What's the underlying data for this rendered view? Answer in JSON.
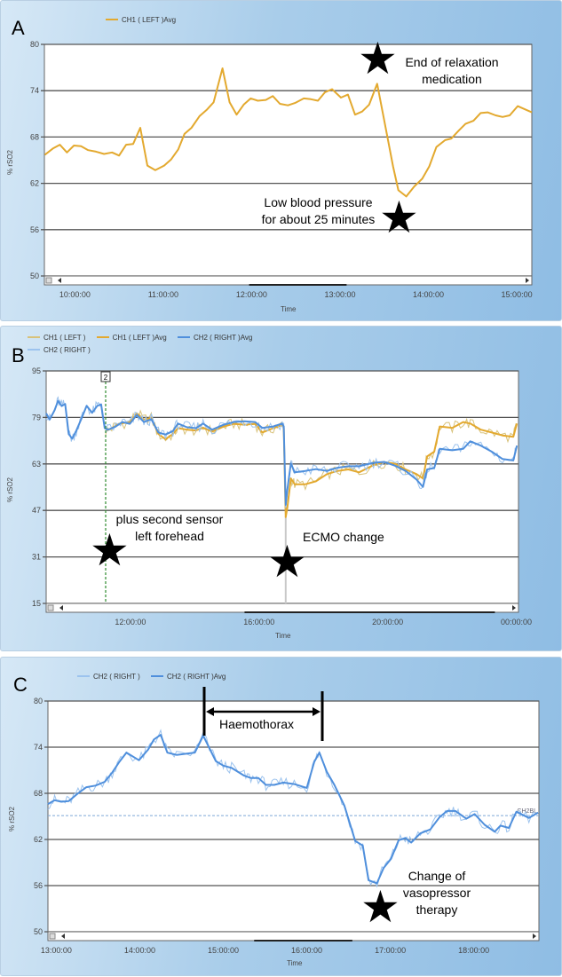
{
  "colors": {
    "ch1": "#e3a92f",
    "ch1_raw": "#d8c27a",
    "ch2": "#4f8fdc",
    "ch2_raw": "#9cc3ee",
    "grid": "#555555",
    "marker": "#2e8b2e"
  },
  "chart_data": [
    {
      "panel": "A",
      "type": "line",
      "xlabel": "Time",
      "ylabel": "% rSO2",
      "xlim": [
        9.655,
        15.17
      ],
      "ylim": [
        50,
        80
      ],
      "yticks": [
        50,
        56,
        62,
        68,
        74,
        80
      ],
      "xticks": [
        {
          "v": 10,
          "label": "10:00:00"
        },
        {
          "v": 11,
          "label": "11:00:00"
        },
        {
          "v": 12,
          "label": "12:00:00"
        },
        {
          "v": 13,
          "label": "13:00:00"
        },
        {
          "v": 14,
          "label": "14:00:00"
        },
        {
          "v": 15,
          "label": "15:00:00"
        }
      ],
      "legend": [
        "CH1 ( LEFT )Avg"
      ],
      "series": [
        {
          "name": "CH1 ( LEFT )Avg",
          "color_key": "ch1",
          "width": 2,
          "x": [
            9.66,
            9.75,
            9.83,
            9.91,
            9.99,
            10.07,
            10.15,
            10.24,
            10.33,
            10.42,
            10.5,
            10.58,
            10.66,
            10.74,
            10.82,
            10.91,
            11.01,
            11.09,
            11.17,
            11.24,
            11.32,
            11.41,
            11.49,
            11.57,
            11.67,
            11.75,
            11.83,
            11.91,
            11.99,
            12.07,
            12.16,
            12.24,
            12.32,
            12.41,
            12.49,
            12.59,
            12.67,
            12.75,
            12.83,
            12.91,
            13.01,
            13.09,
            13.17,
            13.25,
            13.33,
            13.42,
            13.53,
            13.6,
            13.66,
            13.75,
            13.84,
            13.93,
            14.01,
            14.09,
            14.19,
            14.26,
            14.34,
            14.42,
            14.51,
            14.59,
            14.67,
            14.76,
            14.84,
            14.92,
            15.01,
            15.09,
            15.17
          ],
          "y": [
            65.7,
            66.5,
            67.0,
            66.0,
            66.9,
            66.8,
            66.3,
            66.1,
            65.8,
            66.0,
            65.6,
            67.0,
            67.1,
            69.2,
            64.3,
            63.7,
            64.3,
            65.1,
            66.4,
            68.4,
            69.2,
            70.7,
            71.5,
            72.5,
            76.9,
            72.5,
            70.9,
            72.2,
            73.0,
            72.7,
            72.8,
            73.3,
            72.3,
            72.1,
            72.4,
            73.0,
            72.9,
            72.7,
            73.8,
            74.2,
            73.1,
            73.5,
            70.9,
            71.3,
            72.2,
            74.9,
            68.4,
            64.2,
            61.1,
            60.3,
            61.6,
            62.6,
            64.2,
            66.7,
            67.6,
            67.8,
            68.8,
            69.7,
            70.1,
            71.1,
            71.2,
            70.8,
            70.6,
            70.8,
            72.0,
            71.6,
            71.2
          ]
        }
      ],
      "annotations": [
        "End of relaxation",
        "medication",
        "Low blood pressure",
        "for about 25 minutes"
      ]
    },
    {
      "panel": "B",
      "type": "line",
      "xlabel": "Time",
      "ylabel": "% rSO2",
      "xlim": [
        9.38,
        24.07
      ],
      "ylim": [
        15,
        95
      ],
      "yticks": [
        15,
        31,
        47,
        63,
        79,
        95
      ],
      "xticks": [
        {
          "v": 12,
          "label": "12:00:00"
        },
        {
          "v": 16,
          "label": "16:00:00"
        },
        {
          "v": 20,
          "label": "20:00:00"
        },
        {
          "v": 24,
          "label": "00:00:00"
        }
      ],
      "legend": [
        "CH1 ( LEFT )",
        "CH1 ( LEFT )Avg",
        "CH2 ( RIGHT )Avg",
        "CH2 ( RIGHT )"
      ],
      "marker": {
        "label": "2",
        "x": 11.23
      },
      "event_spike": {
        "x": 16.83,
        "y_min": 15
      },
      "series": [
        {
          "name": "CH1 ( LEFT )Avg",
          "color_key": "ch1",
          "raw_color_key": "ch1_raw",
          "width": 2,
          "x": [
            11.23,
            11.42,
            11.64,
            11.98,
            12.2,
            12.42,
            12.65,
            12.87,
            13.09,
            13.32,
            13.48,
            13.76,
            14.04,
            14.26,
            14.54,
            14.88,
            15.21,
            15.55,
            15.88,
            16.1,
            16.44,
            16.72,
            16.77,
            16.83,
            16.88,
            16.99,
            17.11,
            17.44,
            17.77,
            18.11,
            18.44,
            18.78,
            19.11,
            19.56,
            19.89,
            20.23,
            20.56,
            20.9,
            21.1,
            21.23,
            21.45,
            21.62,
            22.01,
            22.35,
            22.57,
            22.9,
            23.24,
            23.57,
            23.91,
            24.02
          ],
          "y": [
            74.3,
            75.3,
            76.8,
            77.4,
            80.4,
            78.3,
            78.8,
            73.3,
            71.5,
            73.3,
            75.3,
            74.8,
            74.5,
            75.5,
            74.1,
            75.8,
            76.8,
            76.5,
            76.8,
            73.8,
            75.3,
            76.4,
            75.3,
            44.7,
            47.8,
            58.0,
            56.0,
            56.0,
            57.0,
            59.5,
            60.6,
            61.1,
            60.1,
            62.6,
            63.6,
            63.1,
            61.1,
            59.5,
            58.0,
            65.6,
            67.2,
            75.9,
            75.4,
            77.4,
            76.9,
            74.8,
            73.8,
            72.8,
            72.3,
            76.9
          ]
        },
        {
          "name": "CH2 ( RIGHT )Avg",
          "color_key": "ch2",
          "raw_color_key": "ch2_raw",
          "width": 2,
          "x": [
            9.38,
            9.49,
            9.64,
            9.75,
            9.86,
            9.97,
            10.08,
            10.19,
            10.31,
            10.47,
            10.64,
            10.81,
            10.97,
            11.09,
            11.2,
            11.31,
            11.53,
            11.75,
            11.98,
            12.2,
            12.42,
            12.65,
            12.87,
            13.09,
            13.32,
            13.48,
            13.76,
            14.04,
            14.26,
            14.54,
            14.88,
            15.21,
            15.55,
            15.88,
            16.1,
            16.44,
            16.72,
            16.77,
            16.83,
            16.88,
            16.99,
            17.11,
            17.44,
            17.77,
            18.11,
            18.44,
            18.78,
            19.11,
            19.56,
            19.89,
            20.23,
            20.56,
            20.9,
            21.1,
            21.23,
            21.45,
            21.62,
            22.01,
            22.35,
            22.57,
            22.9,
            23.24,
            23.57,
            23.91,
            24.02
          ],
          "y": [
            80.4,
            78.3,
            81.4,
            84.7,
            82.9,
            83.6,
            73.3,
            71.7,
            74.3,
            78.4,
            83.0,
            80.6,
            83.0,
            83.5,
            75.3,
            74.8,
            75.8,
            77.4,
            76.8,
            79.9,
            77.4,
            78.4,
            73.8,
            73.1,
            74.3,
            76.9,
            75.6,
            75.3,
            76.9,
            74.8,
            76.4,
            77.4,
            77.7,
            77.4,
            75.4,
            75.9,
            76.9,
            75.9,
            48.9,
            54.0,
            63.2,
            60.1,
            60.6,
            61.2,
            60.6,
            61.7,
            62.2,
            62.2,
            63.4,
            63.7,
            62.4,
            60.6,
            57.6,
            55.1,
            61.1,
            61.6,
            68.2,
            67.7,
            68.2,
            70.8,
            69.3,
            67.2,
            64.7,
            64.2,
            69.3
          ]
        }
      ],
      "annotations": [
        "plus second sensor",
        "left forehead",
        "ECMO change"
      ]
    },
    {
      "panel": "C",
      "type": "line",
      "xlabel": "Time",
      "ylabel": "% rSO2",
      "xlim": [
        12.9,
        18.78
      ],
      "ylim": [
        50,
        80
      ],
      "yticks": [
        50,
        56,
        62,
        68,
        74,
        80
      ],
      "xticks": [
        {
          "v": 13,
          "label": "13:00:00"
        },
        {
          "v": 14,
          "label": "14:00:00"
        },
        {
          "v": 15,
          "label": "15:00:00"
        },
        {
          "v": 16,
          "label": "16:00:00"
        },
        {
          "v": 17,
          "label": "17:00:00"
        },
        {
          "v": 18,
          "label": "18:00:00"
        }
      ],
      "legend": [
        "CH2 ( RIGHT )",
        "CH2 ( RIGHT )Avg"
      ],
      "baseline": {
        "label": "CH2BL",
        "y": 65.1
      },
      "series": [
        {
          "name": "CH2 ( RIGHT )Avg",
          "color_key": "ch2",
          "raw_color_key": "ch2_raw",
          "width": 2,
          "x": [
            12.9,
            12.98,
            13.06,
            13.15,
            13.26,
            13.36,
            13.47,
            13.58,
            13.67,
            13.75,
            13.84,
            13.99,
            14.1,
            14.17,
            14.25,
            14.33,
            14.44,
            14.66,
            14.76,
            14.91,
            15.0,
            15.1,
            15.25,
            15.33,
            15.42,
            15.51,
            15.61,
            15.72,
            15.85,
            16.0,
            16.09,
            16.15,
            16.24,
            16.33,
            16.45,
            16.58,
            16.67,
            16.74,
            16.84,
            16.92,
            17.01,
            17.1,
            17.18,
            17.25,
            17.36,
            17.48,
            17.59,
            17.68,
            17.78,
            17.91,
            18.01,
            18.13,
            18.25,
            18.32,
            18.42,
            18.51,
            18.66,
            18.77
          ],
          "y": [
            66.6,
            67.1,
            66.9,
            67.0,
            68.0,
            68.8,
            69.0,
            69.5,
            70.7,
            72.0,
            73.3,
            72.3,
            73.7,
            75.0,
            75.6,
            73.3,
            73.0,
            73.3,
            75.5,
            72.2,
            71.6,
            71.3,
            70.3,
            70.0,
            70.0,
            69.1,
            69.1,
            69.4,
            69.2,
            68.7,
            72.1,
            73.3,
            70.8,
            69.1,
            66.4,
            61.8,
            61.2,
            56.7,
            56.3,
            58.3,
            59.5,
            61.9,
            62.2,
            61.6,
            62.8,
            63.3,
            64.9,
            65.7,
            65.7,
            64.7,
            65.3,
            63.9,
            63.0,
            63.8,
            63.5,
            65.6,
            64.8,
            65.5
          ]
        }
      ],
      "annotations": [
        "Haemothorax",
        "Change of",
        "vasopressor",
        "therapy"
      ]
    }
  ],
  "panels": [
    {
      "letter": "A",
      "legend": [
        "CH1 ( LEFT )Avg"
      ],
      "xlabel": "Time",
      "ylabel": "% rSO2"
    },
    {
      "letter": "B",
      "legend": [
        "CH1 ( LEFT )",
        "CH1 ( LEFT )Avg",
        "CH2 ( RIGHT )Avg",
        "CH2 ( RIGHT )"
      ],
      "xlabel": "Time",
      "ylabel": "% rSO2"
    },
    {
      "letter": "C",
      "legend": [
        "CH2 ( RIGHT )",
        "CH2 ( RIGHT )Avg"
      ],
      "xlabel": "Time",
      "ylabel": "% rSO2"
    }
  ]
}
